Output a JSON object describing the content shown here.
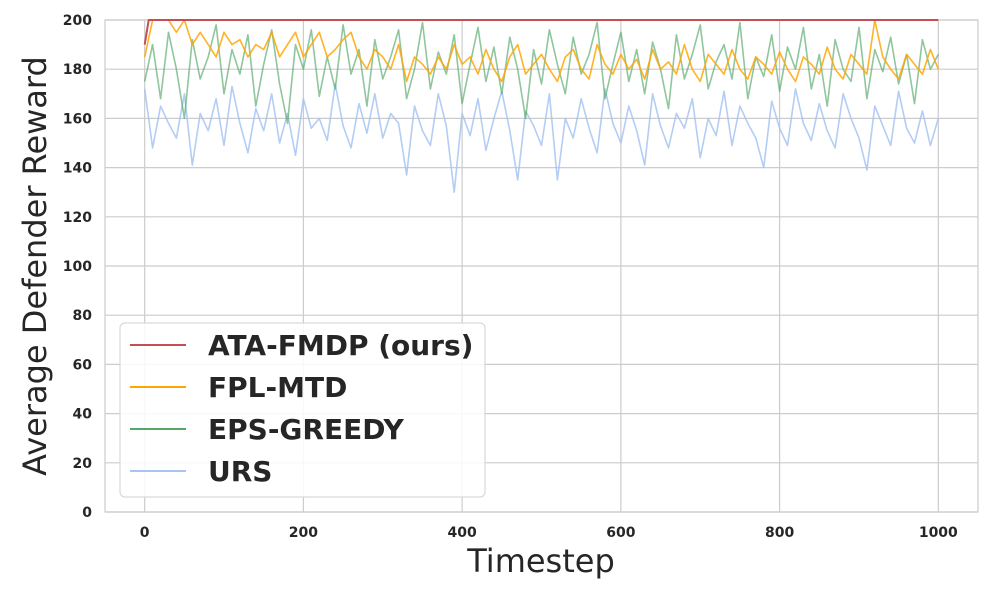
{
  "chart_data": {
    "type": "line",
    "xlabel": "Timestep",
    "ylabel": "Average Defender Reward",
    "xlim": [
      -50,
      1050
    ],
    "ylim": [
      0,
      200
    ],
    "xticks": [
      "0",
      "200",
      "400",
      "600",
      "800",
      "1000"
    ],
    "yticks": [
      "0",
      "20",
      "40",
      "60",
      "80",
      "100",
      "120",
      "140",
      "160",
      "180",
      "200"
    ],
    "grid": true,
    "legend_placement": "lower-left",
    "series": [
      {
        "name": "URS",
        "color": "#a7c4f2",
        "x": [
          0,
          10,
          20,
          30,
          40,
          50,
          60,
          70,
          80,
          90,
          100,
          110,
          120,
          130,
          140,
          150,
          160,
          170,
          180,
          190,
          200,
          210,
          220,
          230,
          240,
          250,
          260,
          270,
          280,
          290,
          300,
          310,
          320,
          330,
          340,
          350,
          360,
          370,
          380,
          390,
          400,
          410,
          420,
          430,
          440,
          450,
          460,
          470,
          480,
          490,
          500,
          510,
          520,
          530,
          540,
          550,
          560,
          570,
          580,
          590,
          600,
          610,
          620,
          630,
          640,
          650,
          660,
          670,
          680,
          690,
          700,
          710,
          720,
          730,
          740,
          750,
          760,
          770,
          780,
          790,
          800,
          810,
          820,
          830,
          840,
          850,
          860,
          870,
          880,
          890,
          900,
          910,
          920,
          930,
          940,
          950,
          960,
          970,
          980,
          990,
          1000
        ],
        "y": [
          172,
          148,
          165,
          158,
          152,
          170,
          141,
          162,
          155,
          168,
          149,
          173,
          158,
          146,
          164,
          155,
          170,
          150,
          162,
          145,
          168,
          156,
          160,
          151,
          174,
          157,
          148,
          166,
          154,
          170,
          152,
          162,
          158,
          137,
          165,
          155,
          149,
          170,
          157,
          130,
          162,
          153,
          168,
          147,
          160,
          171,
          155,
          135,
          163,
          157,
          149,
          170,
          135,
          160,
          152,
          168,
          156,
          146,
          172,
          158,
          150,
          165,
          155,
          141,
          170,
          157,
          148,
          162,
          156,
          168,
          144,
          160,
          153,
          171,
          149,
          165,
          158,
          152,
          140,
          167,
          156,
          149,
          172,
          158,
          151,
          166,
          155,
          148,
          170,
          160,
          152,
          139,
          165,
          157,
          149,
          171,
          156,
          150,
          163,
          149,
          160
        ]
      },
      {
        "name": "EPS-GREEDY",
        "color": "#55a868",
        "x": [
          0,
          10,
          20,
          30,
          40,
          50,
          60,
          70,
          80,
          90,
          100,
          110,
          120,
          130,
          140,
          150,
          160,
          170,
          180,
          190,
          200,
          210,
          220,
          230,
          240,
          250,
          260,
          270,
          280,
          290,
          300,
          310,
          320,
          330,
          340,
          350,
          360,
          370,
          380,
          390,
          400,
          410,
          420,
          430,
          440,
          450,
          460,
          470,
          480,
          490,
          500,
          510,
          520,
          530,
          540,
          550,
          560,
          570,
          580,
          590,
          600,
          610,
          620,
          630,
          640,
          650,
          660,
          670,
          680,
          690,
          700,
          710,
          720,
          730,
          740,
          750,
          760,
          770,
          780,
          790,
          800,
          810,
          820,
          830,
          840,
          850,
          860,
          870,
          880,
          890,
          900,
          910,
          920,
          930,
          940,
          950,
          960,
          970,
          980,
          990,
          1000
        ],
        "y": [
          175,
          190,
          168,
          195,
          180,
          160,
          192,
          176,
          185,
          198,
          170,
          188,
          178,
          194,
          165,
          182,
          196,
          174,
          158,
          190,
          180,
          196,
          169,
          185,
          172,
          198,
          178,
          188,
          165,
          192,
          176,
          185,
          196,
          168,
          180,
          199,
          172,
          187,
          178,
          194,
          166,
          182,
          197,
          175,
          189,
          170,
          193,
          180,
          160,
          188,
          174,
          196,
          182,
          170,
          193,
          178,
          186,
          199,
          168,
          182,
          195,
          175,
          188,
          170,
          191,
          180,
          164,
          194,
          176,
          186,
          198,
          172,
          183,
          190,
          176,
          199,
          168,
          185,
          177,
          194,
          171,
          189,
          180,
          197,
          172,
          186,
          165,
          192,
          180,
          175,
          197,
          168,
          188,
          179,
          193,
          174,
          186,
          166,
          192,
          180,
          186
        ]
      },
      {
        "name": "FPL-MTD",
        "color": "#ffa500",
        "x": [
          0,
          10,
          20,
          30,
          40,
          50,
          60,
          70,
          80,
          90,
          100,
          110,
          120,
          130,
          140,
          150,
          160,
          170,
          180,
          190,
          200,
          210,
          220,
          230,
          240,
          250,
          260,
          270,
          280,
          290,
          300,
          310,
          320,
          330,
          340,
          350,
          360,
          370,
          380,
          390,
          400,
          410,
          420,
          430,
          440,
          450,
          460,
          470,
          480,
          490,
          500,
          510,
          520,
          530,
          540,
          550,
          560,
          570,
          580,
          590,
          600,
          610,
          620,
          630,
          640,
          650,
          660,
          670,
          680,
          690,
          700,
          710,
          720,
          730,
          740,
          750,
          760,
          770,
          780,
          790,
          800,
          810,
          820,
          830,
          840,
          850,
          860,
          870,
          880,
          890,
          900,
          910,
          920,
          930,
          940,
          950,
          960,
          970,
          980,
          990,
          1000
        ],
        "y": [
          185,
          200,
          200,
          200,
          195,
          200,
          190,
          195,
          190,
          185,
          195,
          190,
          192,
          185,
          190,
          188,
          195,
          185,
          190,
          195,
          185,
          190,
          195,
          185,
          188,
          192,
          195,
          185,
          180,
          188,
          185,
          180,
          190,
          175,
          185,
          182,
          178,
          185,
          180,
          190,
          182,
          185,
          178,
          188,
          180,
          175,
          185,
          190,
          178,
          182,
          186,
          180,
          175,
          185,
          188,
          180,
          176,
          190,
          182,
          178,
          186,
          180,
          184,
          176,
          188,
          180,
          183,
          178,
          190,
          180,
          175,
          186,
          182,
          178,
          188,
          180,
          176,
          185,
          182,
          178,
          187,
          180,
          175,
          185,
          182,
          178,
          189,
          180,
          176,
          186,
          182,
          178,
          200,
          185,
          180,
          176,
          186,
          182,
          178,
          188,
          180
        ]
      },
      {
        "name": "ATA-FMDP (ours)",
        "color": "#c44e52",
        "x": [
          0,
          5,
          10,
          1000
        ],
        "y": [
          190,
          200,
          200,
          200
        ]
      }
    ]
  }
}
